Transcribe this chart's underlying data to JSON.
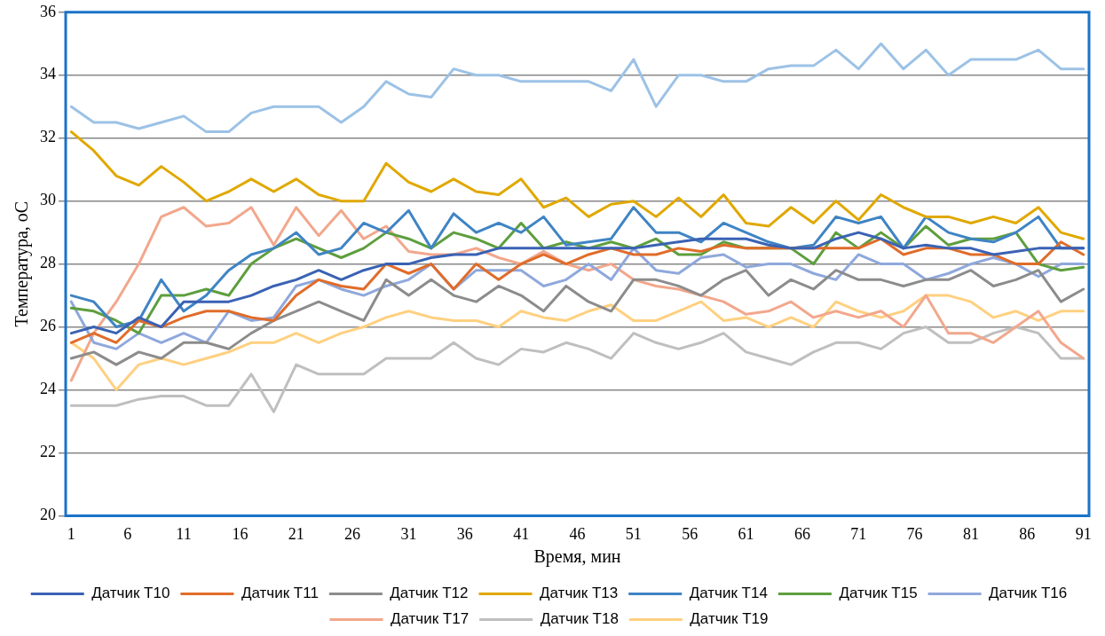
{
  "chart_data": {
    "type": "line",
    "xlabel": "Время, мин",
    "ylabel": "Температура, оС",
    "x": [
      1,
      3,
      5,
      7,
      9,
      11,
      13,
      15,
      17,
      19,
      21,
      23,
      25,
      27,
      29,
      31,
      33,
      35,
      37,
      39,
      41,
      43,
      45,
      47,
      49,
      51,
      53,
      55,
      57,
      59,
      61,
      63,
      65,
      67,
      69,
      71,
      73,
      75,
      77,
      79,
      81,
      83,
      85,
      87,
      89,
      91
    ],
    "xlim": [
      0.5,
      91.5
    ],
    "xticks": [
      1,
      6,
      11,
      16,
      21,
      26,
      31,
      36,
      41,
      46,
      51,
      56,
      61,
      66,
      71,
      76,
      81,
      86,
      91
    ],
    "ylim": [
      20,
      36
    ],
    "yticks": [
      20,
      22,
      24,
      26,
      28,
      30,
      32,
      34,
      36
    ],
    "grid": "y",
    "legend": "bottom",
    "marker": "none",
    "line_style": "solid",
    "series": [
      {
        "name": "Датчик T10",
        "color": "#3a62b4",
        "values": [
          25.8,
          26.0,
          25.8,
          26.3,
          26.0,
          26.8,
          26.8,
          26.8,
          27.0,
          27.3,
          27.5,
          27.8,
          27.5,
          27.8,
          28.0,
          28.0,
          28.2,
          28.3,
          28.3,
          28.5,
          28.5,
          28.5,
          28.5,
          28.5,
          28.5,
          28.5,
          28.6,
          28.7,
          28.8,
          28.8,
          28.8,
          28.6,
          28.5,
          28.5,
          28.8,
          29.0,
          28.8,
          28.5,
          28.6,
          28.5,
          28.5,
          28.3,
          28.4,
          28.5,
          28.5,
          28.5
        ]
      },
      {
        "name": "Датчик T11",
        "color": "#e06c2a",
        "values": [
          25.5,
          25.8,
          25.5,
          26.2,
          26.0,
          26.3,
          26.5,
          26.5,
          26.3,
          26.2,
          27.0,
          27.5,
          27.3,
          27.2,
          28.0,
          27.7,
          28.0,
          27.2,
          28.0,
          27.5,
          28.0,
          28.3,
          28.0,
          28.3,
          28.5,
          28.3,
          28.3,
          28.5,
          28.4,
          28.6,
          28.5,
          28.5,
          28.5,
          28.5,
          28.5,
          28.5,
          28.8,
          28.3,
          28.5,
          28.5,
          28.3,
          28.3,
          28.0,
          28.0,
          28.7,
          28.3
        ]
      },
      {
        "name": "Датчик T12",
        "color": "#8c8c8c",
        "values": [
          25.0,
          25.2,
          24.8,
          25.2,
          25.0,
          25.5,
          25.5,
          25.3,
          25.8,
          26.2,
          26.5,
          26.8,
          26.5,
          26.2,
          27.5,
          27.0,
          27.5,
          27.0,
          26.8,
          27.3,
          27.0,
          26.5,
          27.3,
          26.8,
          26.5,
          27.5,
          27.5,
          27.3,
          27.0,
          27.5,
          27.8,
          27.0,
          27.5,
          27.2,
          27.8,
          27.5,
          27.5,
          27.3,
          27.5,
          27.5,
          27.8,
          27.3,
          27.5,
          27.8,
          26.8,
          27.2
        ]
      },
      {
        "name": "Датчик T13",
        "color": "#e0a800",
        "values": [
          32.2,
          31.6,
          30.8,
          30.5,
          31.1,
          30.6,
          30.0,
          30.3,
          30.7,
          30.3,
          30.7,
          30.2,
          30.0,
          30.0,
          31.2,
          30.6,
          30.3,
          30.7,
          30.3,
          30.2,
          30.7,
          29.8,
          30.1,
          29.5,
          29.9,
          30.0,
          29.5,
          30.1,
          29.5,
          30.2,
          29.3,
          29.2,
          29.8,
          29.3,
          30.0,
          29.4,
          30.2,
          29.8,
          29.5,
          29.5,
          29.3,
          29.5,
          29.3,
          29.8,
          29.0,
          28.8
        ]
      },
      {
        "name": "Датчик T14",
        "color": "#3f84c4",
        "values": [
          27.0,
          26.8,
          26.0,
          26.2,
          27.5,
          26.5,
          27.0,
          27.8,
          28.3,
          28.5,
          29.0,
          28.3,
          28.5,
          29.3,
          29.0,
          29.7,
          28.5,
          29.6,
          29.0,
          29.3,
          29.0,
          29.5,
          28.6,
          28.7,
          28.8,
          29.8,
          29.0,
          29.0,
          28.7,
          29.3,
          29.0,
          28.7,
          28.5,
          28.6,
          29.5,
          29.3,
          29.5,
          28.5,
          29.5,
          29.0,
          28.8,
          28.7,
          29.0,
          29.5,
          28.5,
          28.5
        ]
      },
      {
        "name": "Датчик T15",
        "color": "#5e9e3e",
        "values": [
          26.6,
          26.5,
          26.2,
          25.8,
          27.0,
          27.0,
          27.2,
          27.0,
          28.0,
          28.5,
          28.8,
          28.5,
          28.2,
          28.5,
          29.0,
          28.8,
          28.5,
          29.0,
          28.8,
          28.5,
          29.3,
          28.5,
          28.7,
          28.5,
          28.7,
          28.5,
          28.8,
          28.3,
          28.3,
          28.7,
          28.5,
          28.5,
          28.5,
          28.0,
          29.0,
          28.5,
          29.0,
          28.5,
          29.2,
          28.6,
          28.8,
          28.8,
          29.0,
          28.0,
          27.8,
          27.9
        ]
      },
      {
        "name": "Датчик T16",
        "color": "#8fa8dc",
        "values": [
          26.8,
          25.5,
          25.3,
          25.8,
          25.5,
          25.8,
          25.5,
          26.5,
          26.2,
          26.3,
          27.3,
          27.5,
          27.2,
          27.0,
          27.3,
          27.5,
          28.0,
          27.2,
          27.8,
          27.8,
          27.8,
          27.3,
          27.5,
          28.0,
          27.5,
          28.5,
          27.8,
          27.7,
          28.2,
          28.3,
          27.9,
          28.0,
          28.0,
          27.7,
          27.5,
          28.3,
          28.0,
          28.0,
          27.5,
          27.7,
          28.0,
          28.2,
          28.0,
          27.6,
          28.0,
          28.0
        ]
      },
      {
        "name": "Датчик T17",
        "color": "#f2a78c",
        "values": [
          24.3,
          25.8,
          26.8,
          28.0,
          29.5,
          29.8,
          29.2,
          29.3,
          29.8,
          28.6,
          29.8,
          28.9,
          29.7,
          28.8,
          29.2,
          28.4,
          28.3,
          28.3,
          28.5,
          28.2,
          28.0,
          28.4,
          28.0,
          27.8,
          28.0,
          27.5,
          27.3,
          27.2,
          27.0,
          26.8,
          26.4,
          26.5,
          26.8,
          26.3,
          26.5,
          26.3,
          26.5,
          26.0,
          27.0,
          25.8,
          25.8,
          25.5,
          26.0,
          26.5,
          25.5,
          25.0
        ]
      },
      {
        "name": "Датчик T18",
        "color": "#bfbfbf",
        "values": [
          23.5,
          23.5,
          23.5,
          23.7,
          23.8,
          23.8,
          23.5,
          23.5,
          24.5,
          23.3,
          24.8,
          24.5,
          24.5,
          24.5,
          25.0,
          25.0,
          25.0,
          25.5,
          25.0,
          24.8,
          25.3,
          25.2,
          25.5,
          25.3,
          25.0,
          25.8,
          25.5,
          25.3,
          25.5,
          25.8,
          25.2,
          25.0,
          24.8,
          25.2,
          25.5,
          25.5,
          25.3,
          25.8,
          26.0,
          25.5,
          25.5,
          25.8,
          26.0,
          25.8,
          25.0,
          25.0
        ]
      },
      {
        "name": "Датчик T19",
        "color": "#ffd080",
        "values": [
          25.5,
          25.0,
          24.0,
          24.8,
          25.0,
          24.8,
          25.0,
          25.2,
          25.5,
          25.5,
          25.8,
          25.5,
          25.8,
          26.0,
          26.3,
          26.5,
          26.3,
          26.2,
          26.2,
          26.0,
          26.5,
          26.3,
          26.2,
          26.5,
          26.7,
          26.2,
          26.2,
          26.5,
          26.8,
          26.2,
          26.3,
          26.0,
          26.3,
          26.0,
          26.8,
          26.5,
          26.3,
          26.5,
          27.0,
          27.0,
          26.8,
          26.3,
          26.5,
          26.2,
          26.5,
          26.5
        ]
      },
      {
        "color": "#9cc2e6",
        "values": [
          33.0,
          32.5,
          32.5,
          32.3,
          32.5,
          32.7,
          32.2,
          32.2,
          32.8,
          33.0,
          33.0,
          33.0,
          32.5,
          33.0,
          33.8,
          33.4,
          33.3,
          34.2,
          34.0,
          34.0,
          33.8,
          33.8,
          33.8,
          33.8,
          33.5,
          34.5,
          33.0,
          34.0,
          34.0,
          33.8,
          33.8,
          34.2,
          34.3,
          34.3,
          34.8,
          34.2,
          35.0,
          34.2,
          34.8,
          34.0,
          34.5,
          34.5,
          34.5,
          34.8,
          34.2,
          34.2
        ]
      }
    ]
  }
}
